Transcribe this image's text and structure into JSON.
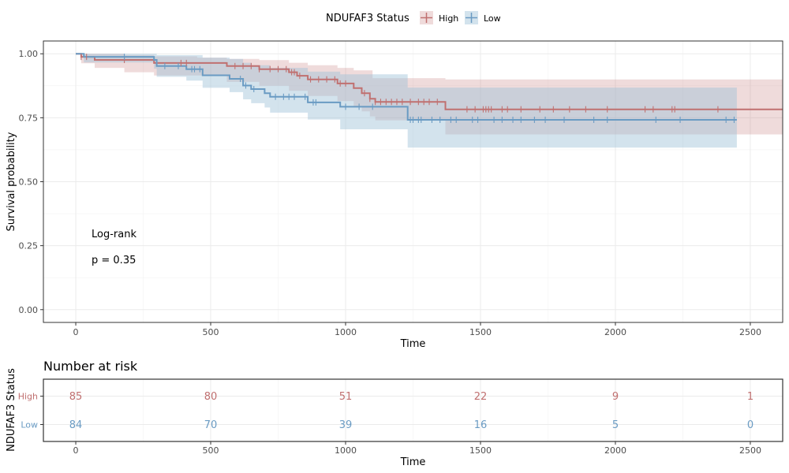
{
  "legend": {
    "title": "NDUFAF3 Status",
    "items": [
      {
        "label": "High",
        "color": "#C07070",
        "fill": "#C07070"
      },
      {
        "label": "Low",
        "color": "#6A9BC3",
        "fill": "#9DC0D6"
      }
    ]
  },
  "annotation": {
    "line1": "Log-rank",
    "line2": "p = 0.35"
  },
  "risk_table": {
    "title": "Number at risk",
    "ylabel": "NDUFAF3 Status",
    "xlabel": "Time",
    "times": [
      0,
      500,
      1000,
      1500,
      2000,
      2500
    ],
    "rows": [
      {
        "label": "High",
        "color": "#C07070",
        "values": [
          85,
          80,
          51,
          22,
          9,
          1
        ]
      },
      {
        "label": "Low",
        "color": "#6A9BC3",
        "values": [
          84,
          70,
          39,
          16,
          5,
          0
        ]
      }
    ]
  },
  "chart_data": {
    "type": "line",
    "subtype": "kaplan-meier-step",
    "xlabel": "Time",
    "ylabel": "Survival probability",
    "xlim": [
      -120,
      2620
    ],
    "ylim": [
      -0.05,
      1.05
    ],
    "xticks": [
      0,
      500,
      1000,
      1500,
      2000,
      2500
    ],
    "yticks": [
      0.0,
      0.25,
      0.5,
      0.75,
      1.0
    ],
    "ytick_labels": [
      "0.00",
      "0.25",
      "0.50",
      "0.75",
      "1.00"
    ],
    "grid": true,
    "series": [
      {
        "name": "High",
        "color": "#C07070",
        "steps": [
          [
            0,
            1.0
          ],
          [
            20,
            0.988
          ],
          [
            70,
            0.976
          ],
          [
            290,
            0.964
          ],
          [
            560,
            0.952
          ],
          [
            680,
            0.94
          ],
          [
            790,
            0.928
          ],
          [
            820,
            0.914
          ],
          [
            860,
            0.9
          ],
          [
            970,
            0.884
          ],
          [
            1030,
            0.866
          ],
          [
            1060,
            0.846
          ],
          [
            1090,
            0.824
          ],
          [
            1110,
            0.812
          ],
          [
            1370,
            0.783
          ],
          [
            2620,
            0.783
          ]
        ],
        "ci_upper": [
          [
            0,
            1.0
          ],
          [
            20,
            1.0
          ],
          [
            180,
            0.995
          ],
          [
            290,
            0.99
          ],
          [
            450,
            0.985
          ],
          [
            560,
            0.98
          ],
          [
            680,
            0.975
          ],
          [
            790,
            0.965
          ],
          [
            860,
            0.955
          ],
          [
            970,
            0.945
          ],
          [
            1030,
            0.935
          ],
          [
            1100,
            0.905
          ],
          [
            1370,
            0.9
          ],
          [
            2620,
            0.9
          ]
        ],
        "ci_lower": [
          [
            0,
            1.0
          ],
          [
            20,
            0.963
          ],
          [
            70,
            0.945
          ],
          [
            180,
            0.928
          ],
          [
            290,
            0.915
          ],
          [
            560,
            0.89
          ],
          [
            680,
            0.875
          ],
          [
            790,
            0.855
          ],
          [
            860,
            0.835
          ],
          [
            970,
            0.815
          ],
          [
            1030,
            0.795
          ],
          [
            1060,
            0.775
          ],
          [
            1090,
            0.755
          ],
          [
            1110,
            0.74
          ],
          [
            1370,
            0.685
          ],
          [
            2620,
            0.685
          ]
        ],
        "censored": [
          20,
          40,
          180,
          390,
          410,
          590,
          620,
          650,
          680,
          720,
          750,
          780,
          800,
          810,
          830,
          870,
          900,
          930,
          960,
          980,
          1000,
          1070,
          1090,
          1110,
          1130,
          1150,
          1170,
          1190,
          1210,
          1240,
          1270,
          1290,
          1310,
          1340,
          1450,
          1480,
          1510,
          1520,
          1530,
          1540,
          1580,
          1600,
          1650,
          1720,
          1770,
          1830,
          1890,
          1970,
          2110,
          2140,
          2210,
          2220,
          2380
        ]
      },
      {
        "name": "Low",
        "color": "#6A9BC3",
        "steps": [
          [
            0,
            1.0
          ],
          [
            30,
            0.988
          ],
          [
            290,
            0.976
          ],
          [
            300,
            0.952
          ],
          [
            410,
            0.94
          ],
          [
            470,
            0.916
          ],
          [
            570,
            0.902
          ],
          [
            620,
            0.876
          ],
          [
            650,
            0.862
          ],
          [
            700,
            0.846
          ],
          [
            720,
            0.832
          ],
          [
            860,
            0.81
          ],
          [
            980,
            0.793
          ],
          [
            1230,
            0.742
          ],
          [
            2450,
            0.742
          ]
        ],
        "ci_upper": [
          [
            0,
            1.0
          ],
          [
            300,
            0.995
          ],
          [
            470,
            0.985
          ],
          [
            570,
            0.98
          ],
          [
            620,
            0.965
          ],
          [
            650,
            0.955
          ],
          [
            720,
            0.945
          ],
          [
            860,
            0.93
          ],
          [
            980,
            0.92
          ],
          [
            1230,
            0.868
          ],
          [
            2450,
            0.868
          ]
        ],
        "ci_lower": [
          [
            0,
            1.0
          ],
          [
            30,
            0.966
          ],
          [
            290,
            0.942
          ],
          [
            300,
            0.91
          ],
          [
            410,
            0.895
          ],
          [
            470,
            0.867
          ],
          [
            570,
            0.85
          ],
          [
            620,
            0.822
          ],
          [
            650,
            0.807
          ],
          [
            700,
            0.79
          ],
          [
            720,
            0.77
          ],
          [
            860,
            0.743
          ],
          [
            980,
            0.705
          ],
          [
            1230,
            0.633
          ],
          [
            2450,
            0.633
          ]
        ],
        "censored": [
          180,
          330,
          380,
          430,
          440,
          460,
          610,
          630,
          660,
          740,
          770,
          790,
          810,
          850,
          880,
          890,
          1000,
          1050,
          1100,
          1240,
          1250,
          1270,
          1280,
          1320,
          1350,
          1390,
          1410,
          1470,
          1490,
          1550,
          1580,
          1620,
          1650,
          1700,
          1740,
          1810,
          1920,
          1970,
          2150,
          2240,
          2410,
          2440
        ]
      }
    ]
  }
}
